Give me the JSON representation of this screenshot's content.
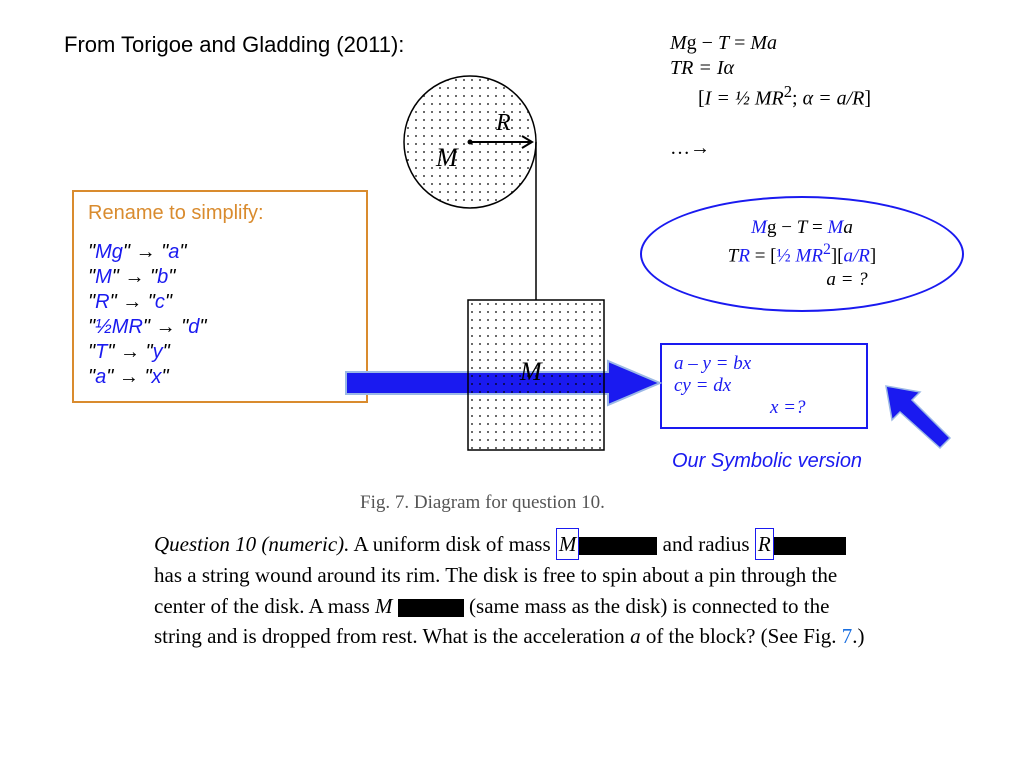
{
  "title": "From Torigoe and Gladding (2011):",
  "colors": {
    "orange": "#d98b2e",
    "blue": "#1a1af0",
    "black": "#000000",
    "arrow_fill": "#1a1af0",
    "arrow_outline": "#9bb8e6",
    "fig_caption": "#555555",
    "dot": "#000000"
  },
  "rename_box": {
    "title": "Rename to simplify:",
    "lines": [
      {
        "from": "Mg",
        "to": "a"
      },
      {
        "from": "M",
        "to": "b"
      },
      {
        "from": "R",
        "to": "c"
      },
      {
        "from": "½MR",
        "to": "d"
      },
      {
        "from": "T",
        "to": "y"
      },
      {
        "from": "a",
        "to": "x"
      }
    ]
  },
  "equations": {
    "line1_parts": [
      "M",
      "g − ",
      "T",
      " = ",
      "M",
      "a"
    ],
    "line2": "TR = Iα",
    "line3_pre": "[",
    "line3_mid1": "I = ½ MR",
    "line3_sup": "2",
    "line3_mid2": "; ",
    "line3_alpha": "α = a/R",
    "line3_post": "]",
    "dots": "…→"
  },
  "ellipse": {
    "line1_parts": [
      "M",
      "g − ",
      "T",
      " = ",
      "M",
      "a"
    ],
    "line2_parts": [
      "T",
      "R",
      " = [",
      "½ ",
      "M",
      "R",
      "2",
      "][",
      "a/R",
      "]"
    ],
    "line3": "a = ?"
  },
  "solve": {
    "line1": "a – y = bx",
    "line2": "cy = dx",
    "line3": "x =?"
  },
  "symbolic_label": "Our Symbolic version",
  "fig_caption": "Fig. 7.  Diagram for question 10.",
  "question": {
    "prefix_italic": "Question 10 (numeric).",
    "t1": " A uniform disk of mass ",
    "var_M": "M",
    "t2": " and radius ",
    "var_R": "R",
    "t3": " has a string wound around its rim. The disk is free to spin about a pin through the center of the disk. A mass ",
    "var_M2": "M ",
    "t4": " (same mass as the disk) is connected to the string and is dropped from rest. What is the acceleration ",
    "var_a": "a",
    "t5": " of the block? (See Fig. ",
    "fig7": "7",
    "t6": ".)"
  },
  "diagram": {
    "R_label": "R",
    "M_label": "M",
    "M2_label": "M"
  }
}
